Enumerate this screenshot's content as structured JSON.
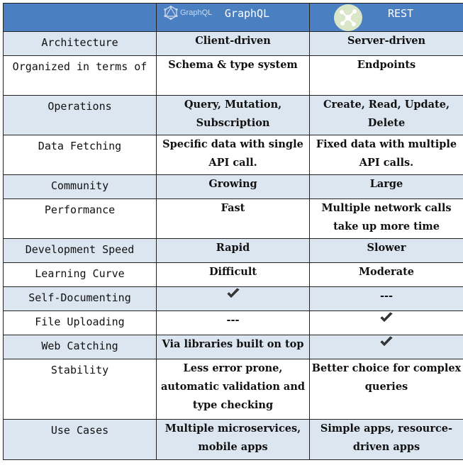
{
  "header": {
    "graphql_logo_text": "GraphQL",
    "graphql_title": "GraphQL",
    "rest_title": "REST"
  },
  "rows": [
    {
      "feature": "Architecture",
      "graphql": "Client-driven",
      "rest": "Server-driven"
    },
    {
      "feature": "Organized in terms of",
      "graphql": "Schema & type system",
      "rest": "Endpoints"
    },
    {
      "feature": "Operations",
      "graphql": "Query, Mutation, Subscription",
      "rest": "Create, Read, Update, Delete"
    },
    {
      "feature": "Data Fetching",
      "graphql": "Specific data with single API call.",
      "rest": "Fixed data with multiple API calls."
    },
    {
      "feature": "Community",
      "graphql": "Growing",
      "rest": "Large"
    },
    {
      "feature": "Performance",
      "graphql": "Fast",
      "rest": "Multiple network calls take up more time"
    },
    {
      "feature": "Development Speed",
      "graphql": "Rapid",
      "rest": "Slower"
    },
    {
      "feature": "Learning Curve",
      "graphql": "Difficult",
      "rest": "Moderate"
    },
    {
      "feature": "Self-Documenting",
      "graphql": "check-icon",
      "rest": "---"
    },
    {
      "feature": "File Uploading",
      "graphql": "---",
      "rest": "check-icon"
    },
    {
      "feature": "Web Catching",
      "graphql": "Via libraries built on top",
      "rest": "check-icon"
    },
    {
      "feature": "Stability",
      "graphql": "Less error prone, automatic validation and type checking",
      "rest": "Better choice for complex queries"
    },
    {
      "feature": "Use Cases",
      "graphql": "Multiple microservices, mobile apps",
      "rest": "Simple apps, resource-driven apps"
    }
  ],
  "colors": {
    "header_bg": "#4a7fc1",
    "shaded_row": "#dce6f1",
    "plain_row": "#ffffff",
    "check": "#3a3a3a"
  }
}
